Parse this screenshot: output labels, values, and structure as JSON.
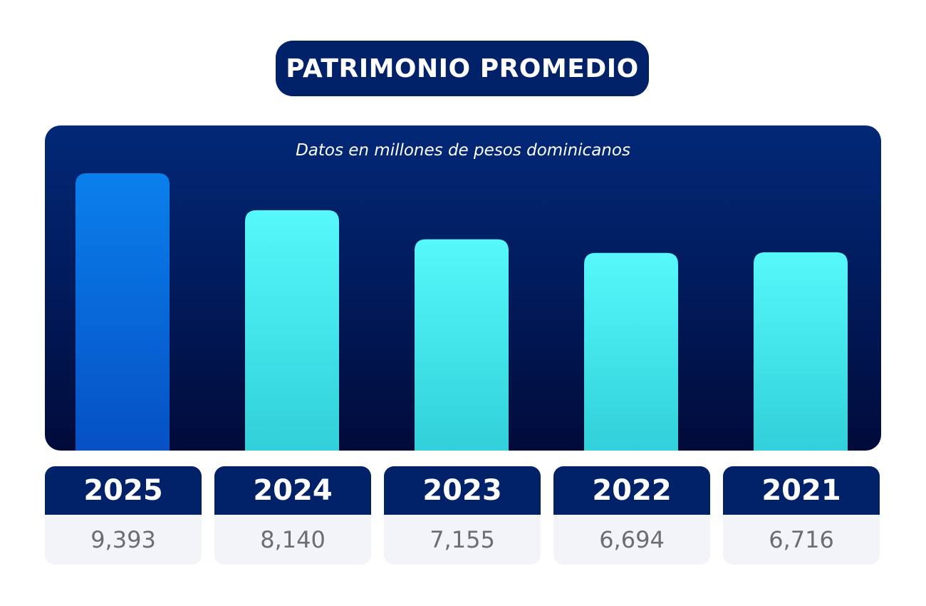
{
  "header": {
    "title": "PATRIMONIO PROMEDIO"
  },
  "chart_data": {
    "type": "bar",
    "title": "PATRIMONIO PROMEDIO",
    "subtitle": "Datos en millones de pesos dominicanos",
    "categories": [
      "2025",
      "2024",
      "2023",
      "2022",
      "2021"
    ],
    "values": [
      9393,
      8140,
      7155,
      6694,
      6716
    ],
    "value_labels": [
      "9,393",
      "8,140",
      "7,155",
      "6,694",
      "6,716"
    ],
    "grid": false,
    "legend": "none"
  },
  "colors": {
    "highlight_bar_top": "#0a80ec",
    "highlight_bar_bottom": "#0650c4",
    "bar_top": "#56f8fb",
    "bar_bottom": "#31d0da",
    "panel_top": "#022877",
    "panel_bottom": "#010b3a",
    "navy": "#012169",
    "card_value_bg": "#f2f4f7",
    "card_value_text": "#6a6d73"
  }
}
